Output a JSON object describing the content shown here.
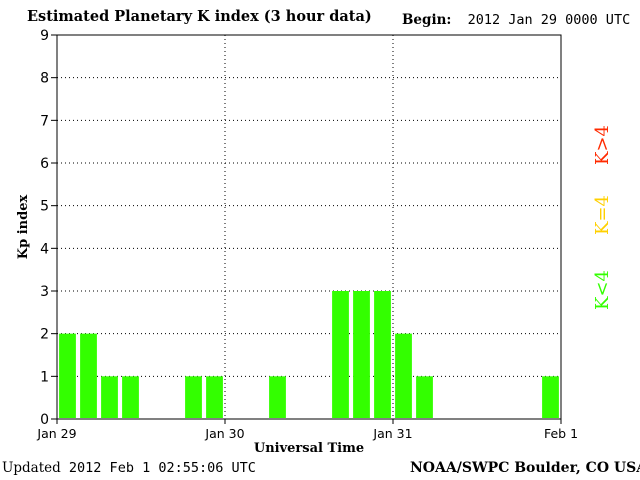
{
  "header": {
    "title": "Estimated Planetary K index (3 hour data)",
    "begin_label": "Begin:",
    "begin_value": "2012 Jan 29 0000 UTC"
  },
  "footer": {
    "updated_label": "Updated",
    "updated_value": "2012 Feb  1 02:55:06 UTC",
    "source": "NOAA/SWPC Boulder, CO USA"
  },
  "legend": [
    {
      "label": "K>4",
      "color": "#ff2a00"
    },
    {
      "label": "K=4",
      "color": "#ffd000"
    },
    {
      "label": "K<4",
      "color": "#33ff00"
    }
  ],
  "colors": {
    "bar_low": "#33ff00",
    "bar_eq4": "#ffd000",
    "bar_high": "#ff2a00"
  },
  "chart_data": {
    "type": "bar",
    "title": "Estimated Planetary K index (3 hour data)",
    "xlabel": "Universal Time",
    "ylabel": "Kp index",
    "ylim": [
      0,
      9
    ],
    "yticks": [
      "0",
      "1",
      "2",
      "3",
      "4",
      "5",
      "6",
      "7",
      "8",
      "9"
    ],
    "xticks": [
      "Jan 29",
      "Jan 30",
      "Jan 31",
      "Feb 1"
    ],
    "grid": true,
    "interval_hours": 3,
    "values": [
      2,
      2,
      1,
      1,
      0,
      0,
      1,
      1,
      0,
      0,
      1,
      0,
      0,
      3,
      3,
      3,
      2,
      1,
      0,
      0,
      0,
      0,
      0,
      1
    ]
  }
}
